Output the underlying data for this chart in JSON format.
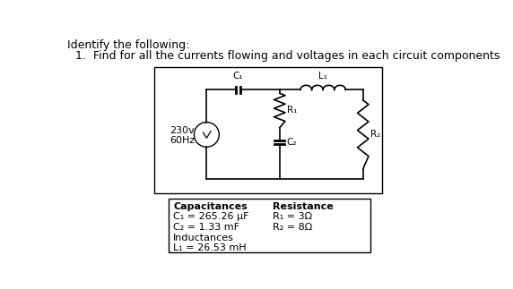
{
  "title_line1": "Identify the following:",
  "title_line2": "1.  Find for all the currents flowing and voltages in each circuit components",
  "source_voltage": "230v",
  "source_freq": "60Hz",
  "table_left_header": "Capacitances",
  "table_left_lines": [
    "C₁ = 265.26 μF",
    "C₂ = 1.33 mF",
    "Inductances",
    "L₁ = 26.53 mH"
  ],
  "table_right_header": "Resistance",
  "table_right_lines": [
    "R₁ = 3Ω",
    "R₂ = 8Ω"
  ],
  "bg_color": "#ffffff",
  "text_color": "#000000"
}
